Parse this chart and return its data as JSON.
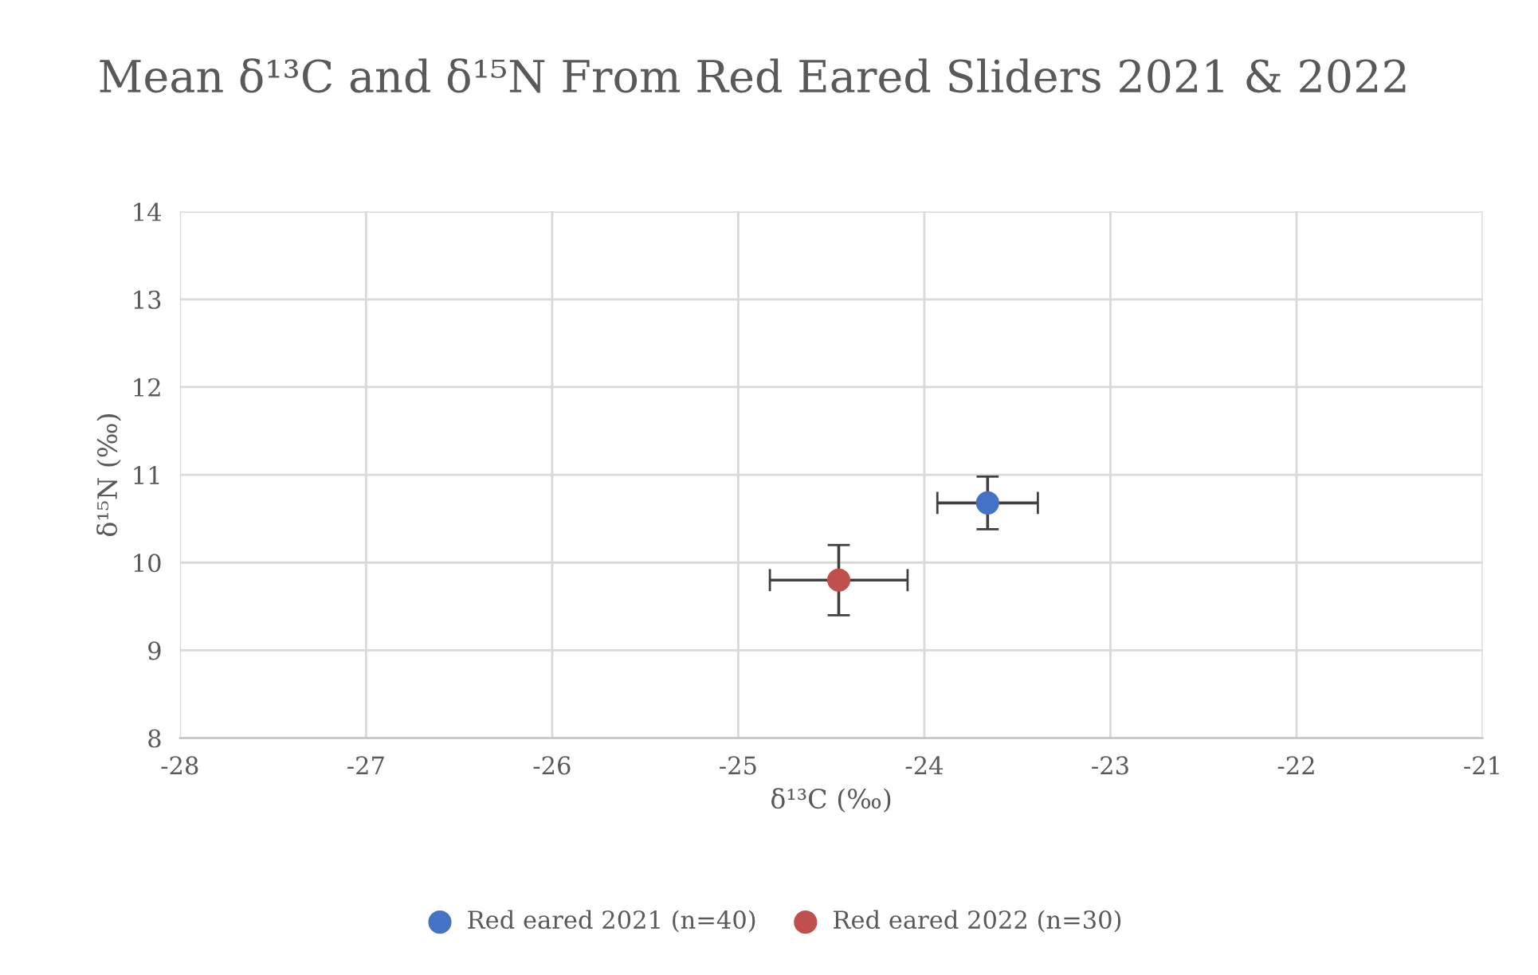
{
  "chart_data": {
    "type": "scatter",
    "title": "Mean δ¹³C and δ¹⁵N From Red Eared Sliders 2021 & 2022",
    "xlabel": "δ¹³C (‰)",
    "ylabel": "δ¹⁵N (‰)",
    "series": [
      {
        "name": "Red eared 2021 (n=40)",
        "color": "#4472c4",
        "x": [
          -23.66
        ],
        "values": [
          10.68
        ],
        "errors": [
          0.3
        ],
        "xerrors": [
          0.27
        ]
      },
      {
        "name": "Red eared 2022 (n=30)",
        "color": "#c0504d",
        "x": [
          -24.46
        ],
        "values": [
          9.8
        ],
        "errors": [
          0.4
        ],
        "xerrors": [
          0.37
        ]
      }
    ],
    "xlim": [
      -28,
      -21
    ],
    "xticks": [
      -28,
      -27,
      -26,
      -25,
      -24,
      -23,
      -22,
      -21
    ],
    "ylim": [
      8,
      14
    ],
    "yticks": [
      8,
      9,
      10,
      11,
      12,
      13,
      14
    ],
    "grid": true,
    "legend": "bottom",
    "marker": "circle"
  }
}
